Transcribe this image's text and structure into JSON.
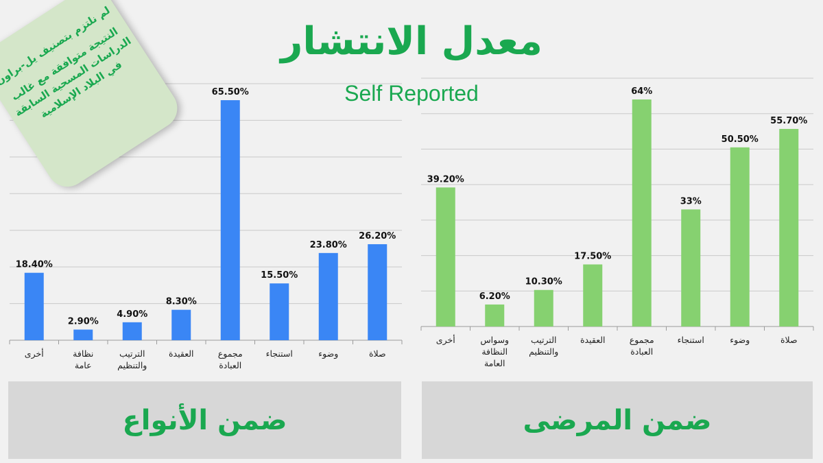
{
  "title": "معدل الانتشار",
  "subtitle": "Self Reported",
  "note": {
    "line1": "لم نلتزم بتصنيف يل-براون",
    "line2": "النتيجة متوافقة مع غالب الدراسات المسحية السابقة في البلاد الإسلامية"
  },
  "panels": {
    "left": "ضمن الأنواع",
    "right": "ضمن المرضى"
  },
  "colors": {
    "left_bars": "#3a86f5",
    "right_bars": "#86d170",
    "accent": "#1aa850"
  },
  "chart_data": [
    {
      "type": "bar",
      "categories": [
        "أخرى",
        "نظافة عامة",
        "الترتيب والتنظيم",
        "العقيدة",
        "مجموع العبادة",
        "استنجاء",
        "وضوء",
        "صلاة"
      ],
      "values": [
        18.4,
        2.9,
        4.9,
        8.3,
        65.5,
        15.5,
        23.8,
        26.2
      ],
      "value_labels": [
        "18.40%",
        "2.90%",
        "4.90%",
        "8.30%",
        "65.50%",
        "15.50%",
        "23.80%",
        "26.20%"
      ],
      "ylim": [
        0,
        70
      ],
      "grid": true
    },
    {
      "type": "bar",
      "categories": [
        "أخرى",
        "وسواس النظافة العامة",
        "الترتيب والتنظيم",
        "العقيدة",
        "مجموع العبادة",
        "استنجاء",
        "وضوء",
        "صلاة"
      ],
      "values": [
        39.2,
        6.2,
        10.3,
        17.5,
        64,
        33,
        50.5,
        55.7
      ],
      "value_labels": [
        "39.20%",
        "6.20%",
        "10.30%",
        "17.50%",
        "64%",
        "33%",
        "50.50%",
        "55.70%"
      ],
      "ylim": [
        0,
        70
      ],
      "grid": true
    }
  ]
}
